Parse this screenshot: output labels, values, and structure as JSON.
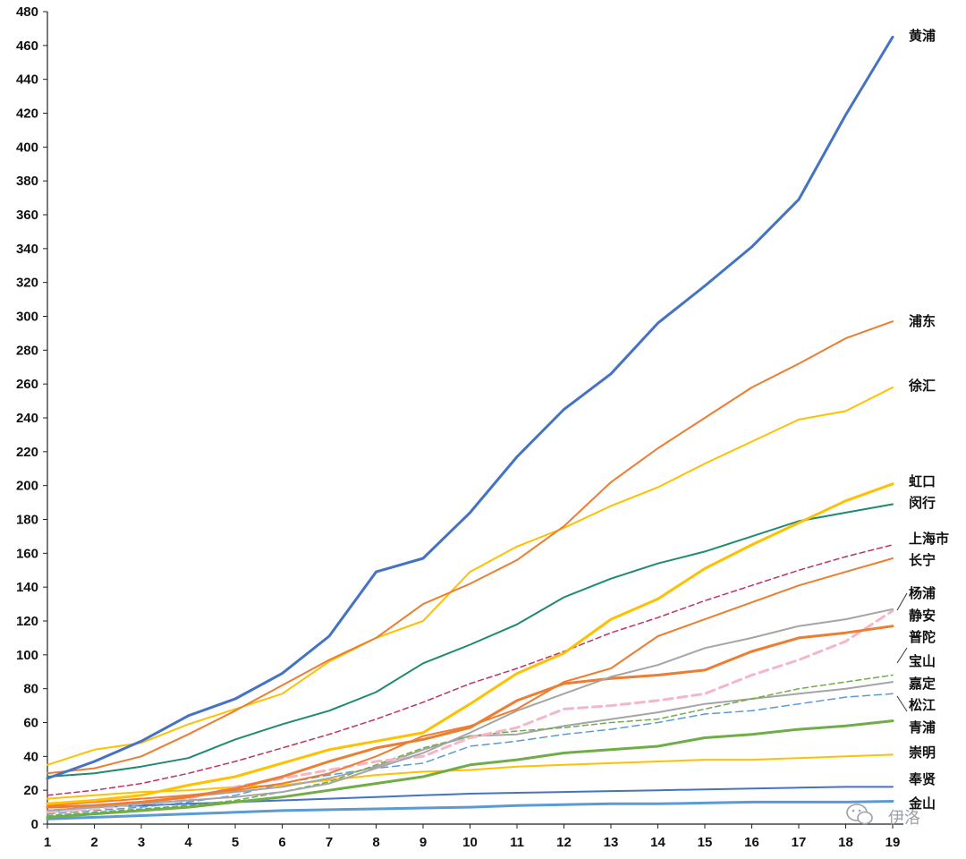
{
  "chart_data": {
    "type": "line",
    "x": [
      1,
      2,
      3,
      4,
      5,
      6,
      7,
      8,
      9,
      10,
      11,
      12,
      13,
      14,
      15,
      16,
      17,
      18,
      19
    ],
    "ylim": [
      0,
      480
    ],
    "yticks": [
      0,
      20,
      40,
      60,
      80,
      100,
      120,
      140,
      160,
      180,
      200,
      220,
      240,
      260,
      280,
      300,
      320,
      340,
      360,
      380,
      400,
      420,
      440,
      460,
      480
    ],
    "grid": false,
    "series": [
      {
        "name": "黄浦",
        "color": "#4472C4",
        "width": 3,
        "dash": "",
        "values": [
          27,
          37,
          49,
          64,
          74,
          89,
          111,
          149,
          157,
          184,
          217,
          245,
          266,
          296,
          318,
          341,
          369,
          419,
          465
        ]
      },
      {
        "name": "浦东",
        "color": "#ED7D31",
        "width": 2,
        "dash": "",
        "values": [
          30,
          33,
          40,
          53,
          67,
          82,
          97,
          110,
          130,
          142,
          156,
          176,
          202,
          222,
          240,
          258,
          272,
          287,
          297
        ]
      },
      {
        "name": "徐汇",
        "color": "#FFC000",
        "width": 2,
        "dash": "",
        "values": [
          35,
          44,
          48,
          59,
          68,
          77,
          96,
          110,
          120,
          149,
          164,
          175,
          188,
          199,
          213,
          226,
          239,
          244,
          258
        ]
      },
      {
        "name": "虹口",
        "color": "#FFC000",
        "width": 3,
        "dash": "",
        "values": [
          12,
          14,
          17,
          23,
          28,
          36,
          44,
          49,
          54,
          71,
          89,
          101,
          121,
          133,
          151,
          165,
          178,
          191,
          201
        ]
      },
      {
        "name": "闵行",
        "color": "#1F8A70",
        "width": 2,
        "dash": "",
        "values": [
          28,
          30,
          34,
          39,
          50,
          59,
          67,
          78,
          95,
          106,
          118,
          134,
          145,
          154,
          161,
          170,
          179,
          184,
          189
        ]
      },
      {
        "name": "上海市",
        "color": "#C0306A",
        "width": 1.5,
        "dash": "6,4",
        "values": [
          17,
          20,
          24,
          30,
          37,
          45,
          53,
          62,
          72,
          83,
          92,
          102,
          113,
          122,
          132,
          141,
          150,
          158,
          165
        ]
      },
      {
        "name": "长宁",
        "color": "#ED7D31",
        "width": 2,
        "dash": "",
        "values": [
          11,
          13,
          15,
          17,
          20,
          24,
          30,
          40,
          52,
          58,
          68,
          84,
          92,
          111,
          121,
          131,
          141,
          149,
          157
        ]
      },
      {
        "name": "杨浦",
        "color": "#A5A5A5",
        "width": 2,
        "dash": "",
        "values": [
          8,
          10,
          12,
          14,
          16,
          19,
          24,
          33,
          42,
          54,
          67,
          77,
          87,
          94,
          104,
          110,
          117,
          121,
          127
        ]
      },
      {
        "name": "静安",
        "color": "#ED7D31",
        "width": 3,
        "dash": "",
        "values": [
          10,
          11,
          13,
          16,
          21,
          28,
          37,
          45,
          50,
          57,
          73,
          83,
          86,
          88,
          91,
          102,
          110,
          113,
          117
        ]
      },
      {
        "name": "普陀",
        "color": "#F4B6C8",
        "width": 3,
        "dash": "10,6",
        "values": [
          7,
          9,
          12,
          15,
          22,
          27,
          32,
          37,
          40,
          51,
          57,
          68,
          70,
          73,
          77,
          88,
          97,
          108,
          126
        ]
      },
      {
        "name": "宝山",
        "color": "#70AD47",
        "width": 1.5,
        "dash": "6,4",
        "values": [
          5,
          7,
          9,
          11,
          14,
          19,
          25,
          35,
          45,
          52,
          55,
          57,
          60,
          62,
          68,
          74,
          80,
          84,
          88
        ]
      },
      {
        "name": "嘉定",
        "color": "#A5A5A5",
        "width": 2,
        "dash": "",
        "values": [
          7,
          10,
          13,
          16,
          19,
          22,
          27,
          34,
          44,
          52,
          53,
          58,
          62,
          66,
          71,
          74,
          77,
          80,
          84
        ]
      },
      {
        "name": "松江",
        "color": "#5B9BD5",
        "width": 1.5,
        "dash": "8,5",
        "values": [
          6,
          8,
          10,
          13,
          17,
          24,
          29,
          33,
          36,
          46,
          49,
          53,
          56,
          60,
          65,
          67,
          71,
          75,
          77
        ]
      },
      {
        "name": "青浦",
        "color": "#70AD47",
        "width": 3,
        "dash": "",
        "values": [
          4,
          6,
          8,
          10,
          13,
          16,
          20,
          24,
          28,
          35,
          38,
          42,
          44,
          46,
          51,
          53,
          56,
          58,
          61
        ]
      },
      {
        "name": "崇明",
        "color": "#FFC000",
        "width": 2,
        "dash": "",
        "values": [
          15,
          17,
          19,
          20,
          22,
          23,
          26,
          29,
          31,
          32,
          34,
          35,
          36,
          37,
          38,
          38,
          39,
          40,
          41
        ]
      },
      {
        "name": "奉贤",
        "color": "#4472C4",
        "width": 2,
        "dash": "",
        "values": [
          8,
          10,
          11,
          12,
          13,
          14,
          15,
          16,
          17,
          18,
          18.5,
          19,
          19.5,
          20,
          20.5,
          21,
          21.5,
          22,
          22
        ]
      },
      {
        "name": "金山",
        "color": "#5B9BD5",
        "width": 3,
        "dash": "",
        "values": [
          3,
          4,
          5,
          6,
          7,
          8,
          8.5,
          9,
          9.5,
          10,
          11,
          11.5,
          12,
          12,
          12.5,
          13,
          13,
          13,
          13.5
        ]
      }
    ]
  },
  "labels": [
    {
      "name": "黄浦"
    },
    {
      "name": "浦东"
    },
    {
      "name": "徐汇"
    },
    {
      "name": "虹口"
    },
    {
      "name": "闵行"
    },
    {
      "name": "上海市"
    },
    {
      "name": "长宁"
    },
    {
      "name": "杨浦"
    },
    {
      "name": "静安"
    },
    {
      "name": "普陀"
    },
    {
      "name": "宝山"
    },
    {
      "name": "嘉定"
    },
    {
      "name": "松江"
    },
    {
      "name": "青浦"
    },
    {
      "name": "崇明"
    },
    {
      "name": "奉贤"
    },
    {
      "name": "金山"
    }
  ],
  "watermark": {
    "text": "伊洛",
    "icon": "wechat-icon"
  }
}
